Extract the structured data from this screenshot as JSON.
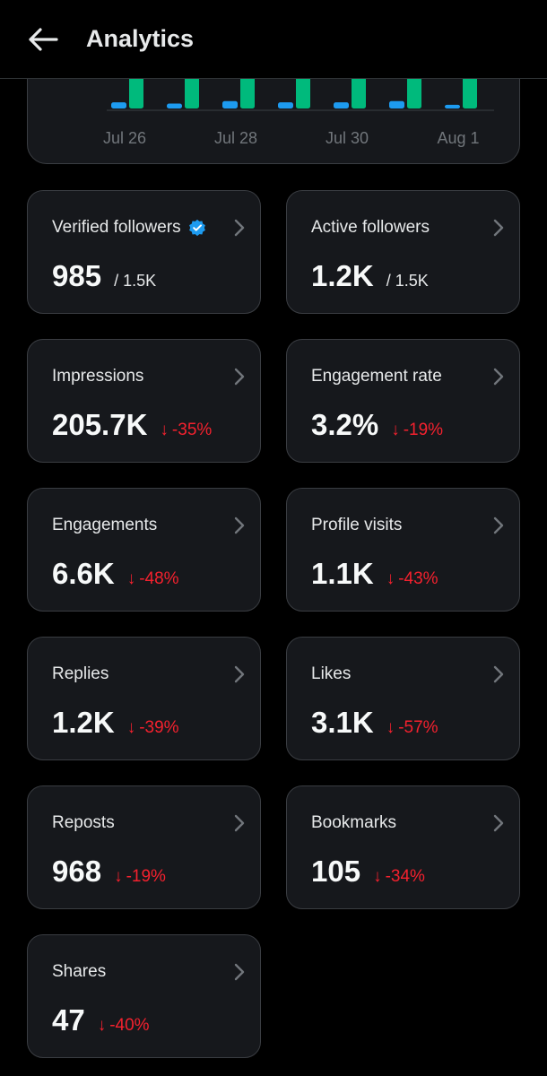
{
  "header": {
    "title": "Analytics",
    "back_icon": "arrow-left-icon"
  },
  "chart_data": {
    "type": "bar",
    "categories": [
      "Jul 26",
      "Jul 27",
      "Jul 28",
      "Jul 29",
      "Jul 30",
      "Jul 31",
      "Aug 1"
    ],
    "tick_labels": [
      "Jul 26",
      "Jul 28",
      "Jul 30",
      "Aug 1"
    ],
    "series": [
      {
        "color": "#1d9bf0",
        "values": [
          5,
          4,
          6,
          5,
          5,
          6,
          3
        ]
      },
      {
        "color": "#00ba7c",
        "values": [
          45,
          45,
          45,
          45,
          45,
          45,
          45
        ]
      }
    ],
    "ylim": [
      0,
      60
    ],
    "grid": false
  },
  "metrics": [
    {
      "label": "Verified followers",
      "value": "985",
      "total": "/ 1.5K",
      "verified": true
    },
    {
      "label": "Active followers",
      "value": "1.2K",
      "total": "/ 1.5K"
    },
    {
      "label": "Impressions",
      "value": "205.7K",
      "change": "-35%"
    },
    {
      "label": "Engagement rate",
      "value": "3.2%",
      "change": "-19%"
    },
    {
      "label": "Engagements",
      "value": "6.6K",
      "change": "-48%"
    },
    {
      "label": "Profile visits",
      "value": "1.1K",
      "change": "-43%"
    },
    {
      "label": "Replies",
      "value": "1.2K",
      "change": "-39%"
    },
    {
      "label": "Likes",
      "value": "3.1K",
      "change": "-57%"
    },
    {
      "label": "Reposts",
      "value": "968",
      "change": "-19%"
    },
    {
      "label": "Bookmarks",
      "value": "105",
      "change": "-34%"
    },
    {
      "label": "Shares",
      "value": "47",
      "change": "-40%"
    }
  ],
  "colors": {
    "negative": "#f4212e",
    "verified": "#1d9bf0",
    "card_bg": "#16181c"
  }
}
